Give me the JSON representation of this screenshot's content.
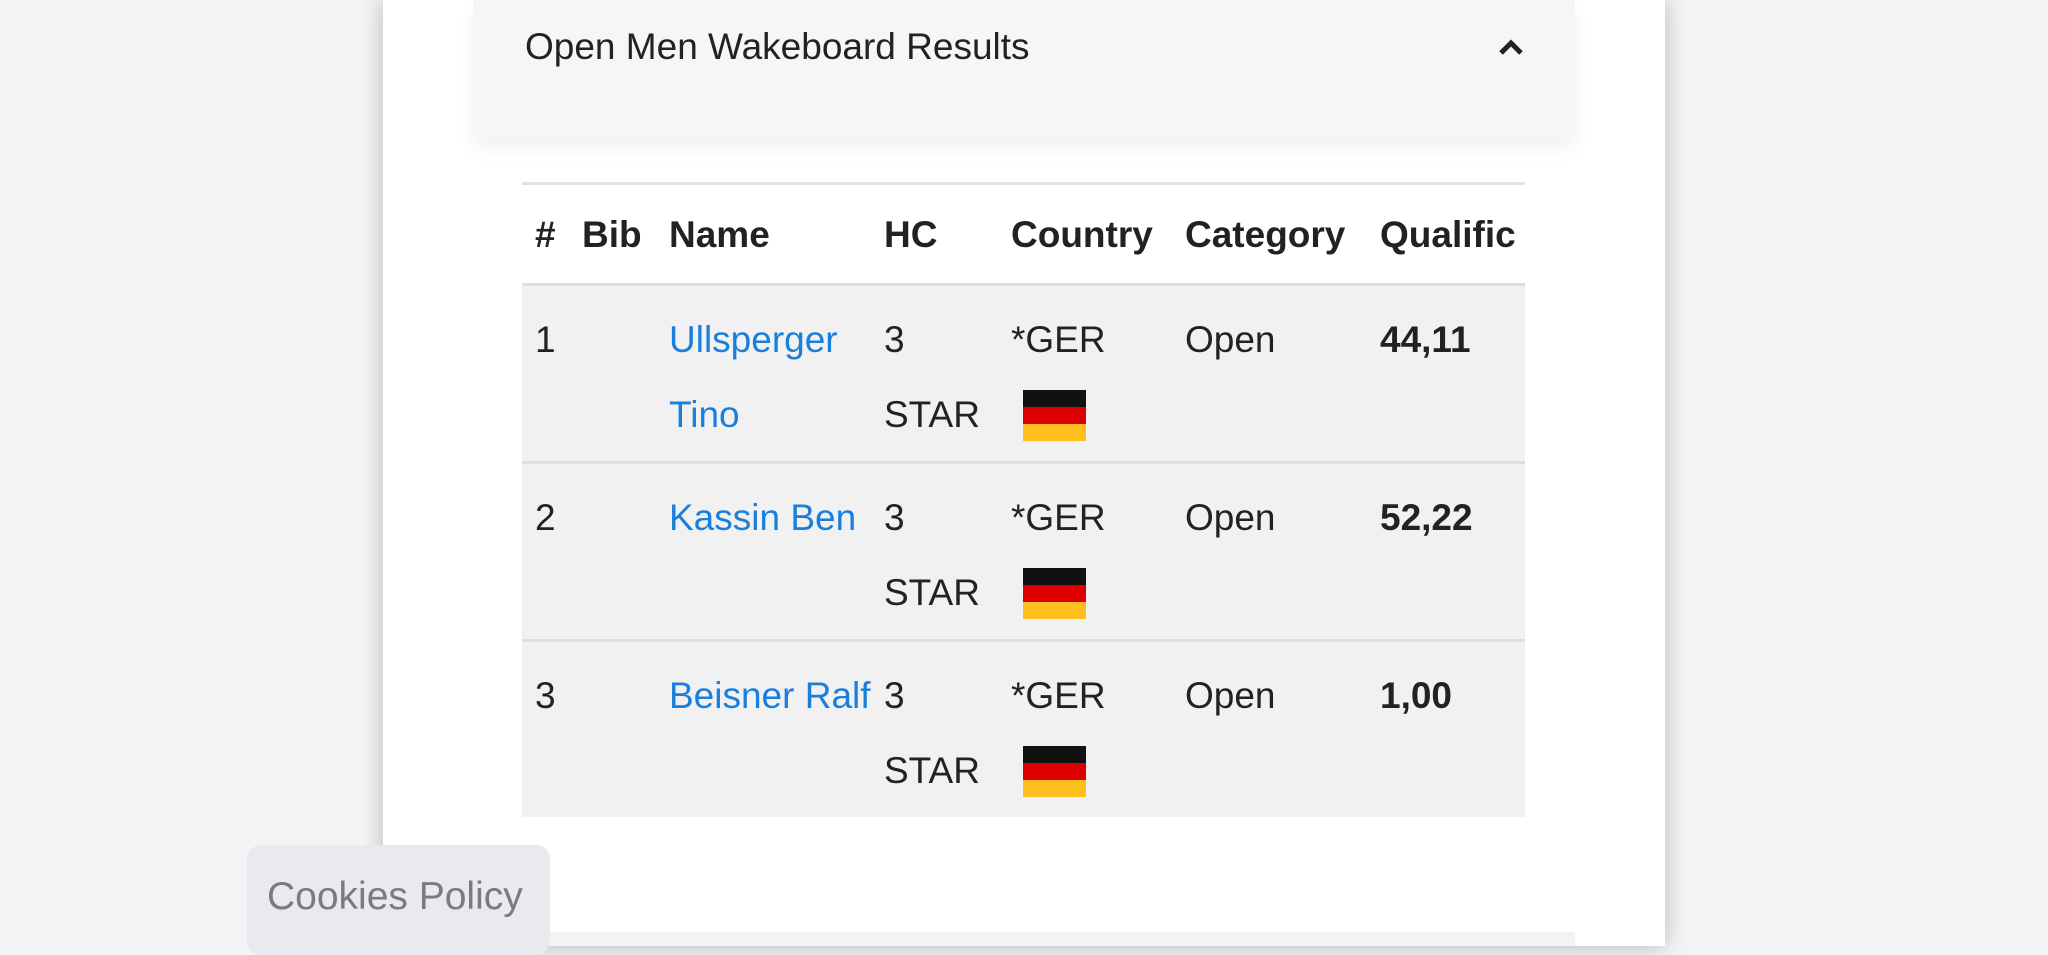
{
  "accordion": {
    "title": "Open Men Wakeboard Results"
  },
  "table": {
    "headers": [
      "#",
      "Bib",
      "Name",
      "HC",
      "Country",
      "Category",
      "Qualific"
    ],
    "rows": [
      {
        "rank": "1",
        "name": "Ullsperger Tino",
        "hc": "3 STAR",
        "country": "*GER",
        "category": "Open",
        "qualification": "44,11"
      },
      {
        "rank": "2",
        "name": "Kassin Ben",
        "hc": "3 STAR",
        "country": "*GER",
        "category": "Open",
        "qualification": "52,22"
      },
      {
        "rank": "3",
        "name": "Beisner Ralf",
        "hc": "3 STAR",
        "country": "*GER",
        "category": "Open",
        "qualification": "1,00"
      }
    ]
  },
  "cookies": {
    "label": "Cookies Policy"
  }
}
